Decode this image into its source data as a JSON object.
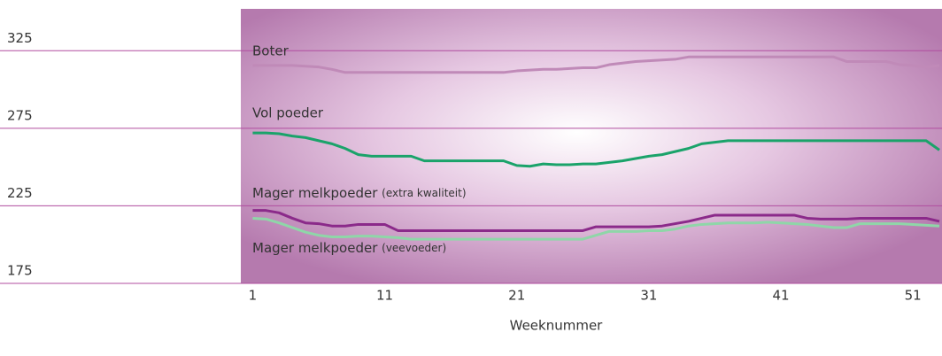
{
  "chart_data": {
    "type": "line",
    "x": [
      1,
      2,
      3,
      4,
      5,
      6,
      7,
      8,
      9,
      10,
      11,
      12,
      13,
      14,
      15,
      16,
      17,
      18,
      19,
      20,
      21,
      22,
      23,
      24,
      25,
      26,
      27,
      28,
      29,
      30,
      31,
      32,
      33,
      34,
      35,
      36,
      37,
      38,
      39,
      40,
      41,
      42,
      43,
      44,
      45,
      46,
      47,
      48,
      49,
      50,
      51,
      52,
      53
    ],
    "x_label": "Weeknummer",
    "xlim": [
      0.1,
      53.2
    ],
    "xticks": [
      1,
      11,
      21,
      31,
      41,
      51
    ],
    "ylim": [
      175,
      352
    ],
    "yticks": [
      175,
      225,
      275,
      325
    ],
    "grid": true,
    "series": [
      {
        "name": "Boter",
        "color": "#c08ab8",
        "values": [
          315.5,
          315.5,
          315.5,
          315.5,
          315,
          314.5,
          313,
          311,
          311,
          311,
          311,
          311,
          311,
          311,
          311,
          311,
          311,
          311,
          311,
          311,
          312,
          312.5,
          313,
          313,
          313.5,
          314,
          314,
          316,
          317,
          318,
          318.5,
          319,
          319.5,
          321,
          321,
          321,
          321,
          321,
          321,
          321,
          321,
          321,
          321,
          321,
          321,
          318,
          318,
          318,
          318,
          316,
          315.5,
          314.5,
          315.5
        ]
      },
      {
        "name": "Vol poeder",
        "color": "#1aa36a",
        "values": [
          272,
          272,
          271.5,
          270,
          269,
          267,
          265,
          262,
          258,
          257,
          257,
          257,
          257,
          254,
          254,
          254,
          254,
          254,
          254,
          254,
          251,
          250.5,
          252,
          251.5,
          251.5,
          252,
          252,
          253,
          254,
          255.5,
          257,
          258,
          260,
          262,
          265,
          266,
          267,
          267,
          267,
          267,
          267,
          267,
          267,
          267,
          267,
          267,
          267,
          267,
          267,
          267,
          267,
          267,
          261
        ]
      },
      {
        "name": "Mager melkpoeder (extra kwaliteit)",
        "color": "#8b2a8a",
        "values": [
          222,
          222,
          220.5,
          217,
          214,
          213.5,
          212,
          212,
          213,
          213,
          213,
          209,
          209,
          209,
          209,
          209,
          209,
          209,
          209,
          209,
          209,
          209,
          209,
          209,
          209,
          209,
          211.5,
          211.5,
          211.5,
          211.5,
          211.5,
          212,
          213.5,
          215,
          217,
          219,
          219,
          219,
          219,
          219,
          219,
          219,
          217,
          216.5,
          216.5,
          216.5,
          217,
          217,
          217,
          217,
          217,
          217,
          215
        ]
      },
      {
        "name": "Mager melkpoeder (veevoeder)",
        "color": "#8fd6a8",
        "values": [
          217,
          216.5,
          214,
          211,
          208,
          206,
          205,
          205,
          205.5,
          205.5,
          205,
          204.5,
          203.5,
          203.5,
          203.5,
          203.5,
          203.5,
          203.5,
          203.5,
          203.5,
          203.5,
          203.5,
          203.5,
          203.5,
          203.5,
          203.5,
          206,
          208.5,
          208.5,
          208.5,
          209,
          209,
          210,
          212,
          213,
          213.5,
          214,
          214,
          214,
          214.5,
          214,
          213.5,
          213,
          212,
          211,
          211,
          213.5,
          213.5,
          213.5,
          213.5,
          213,
          212.5,
          212
        ]
      }
    ]
  }
}
